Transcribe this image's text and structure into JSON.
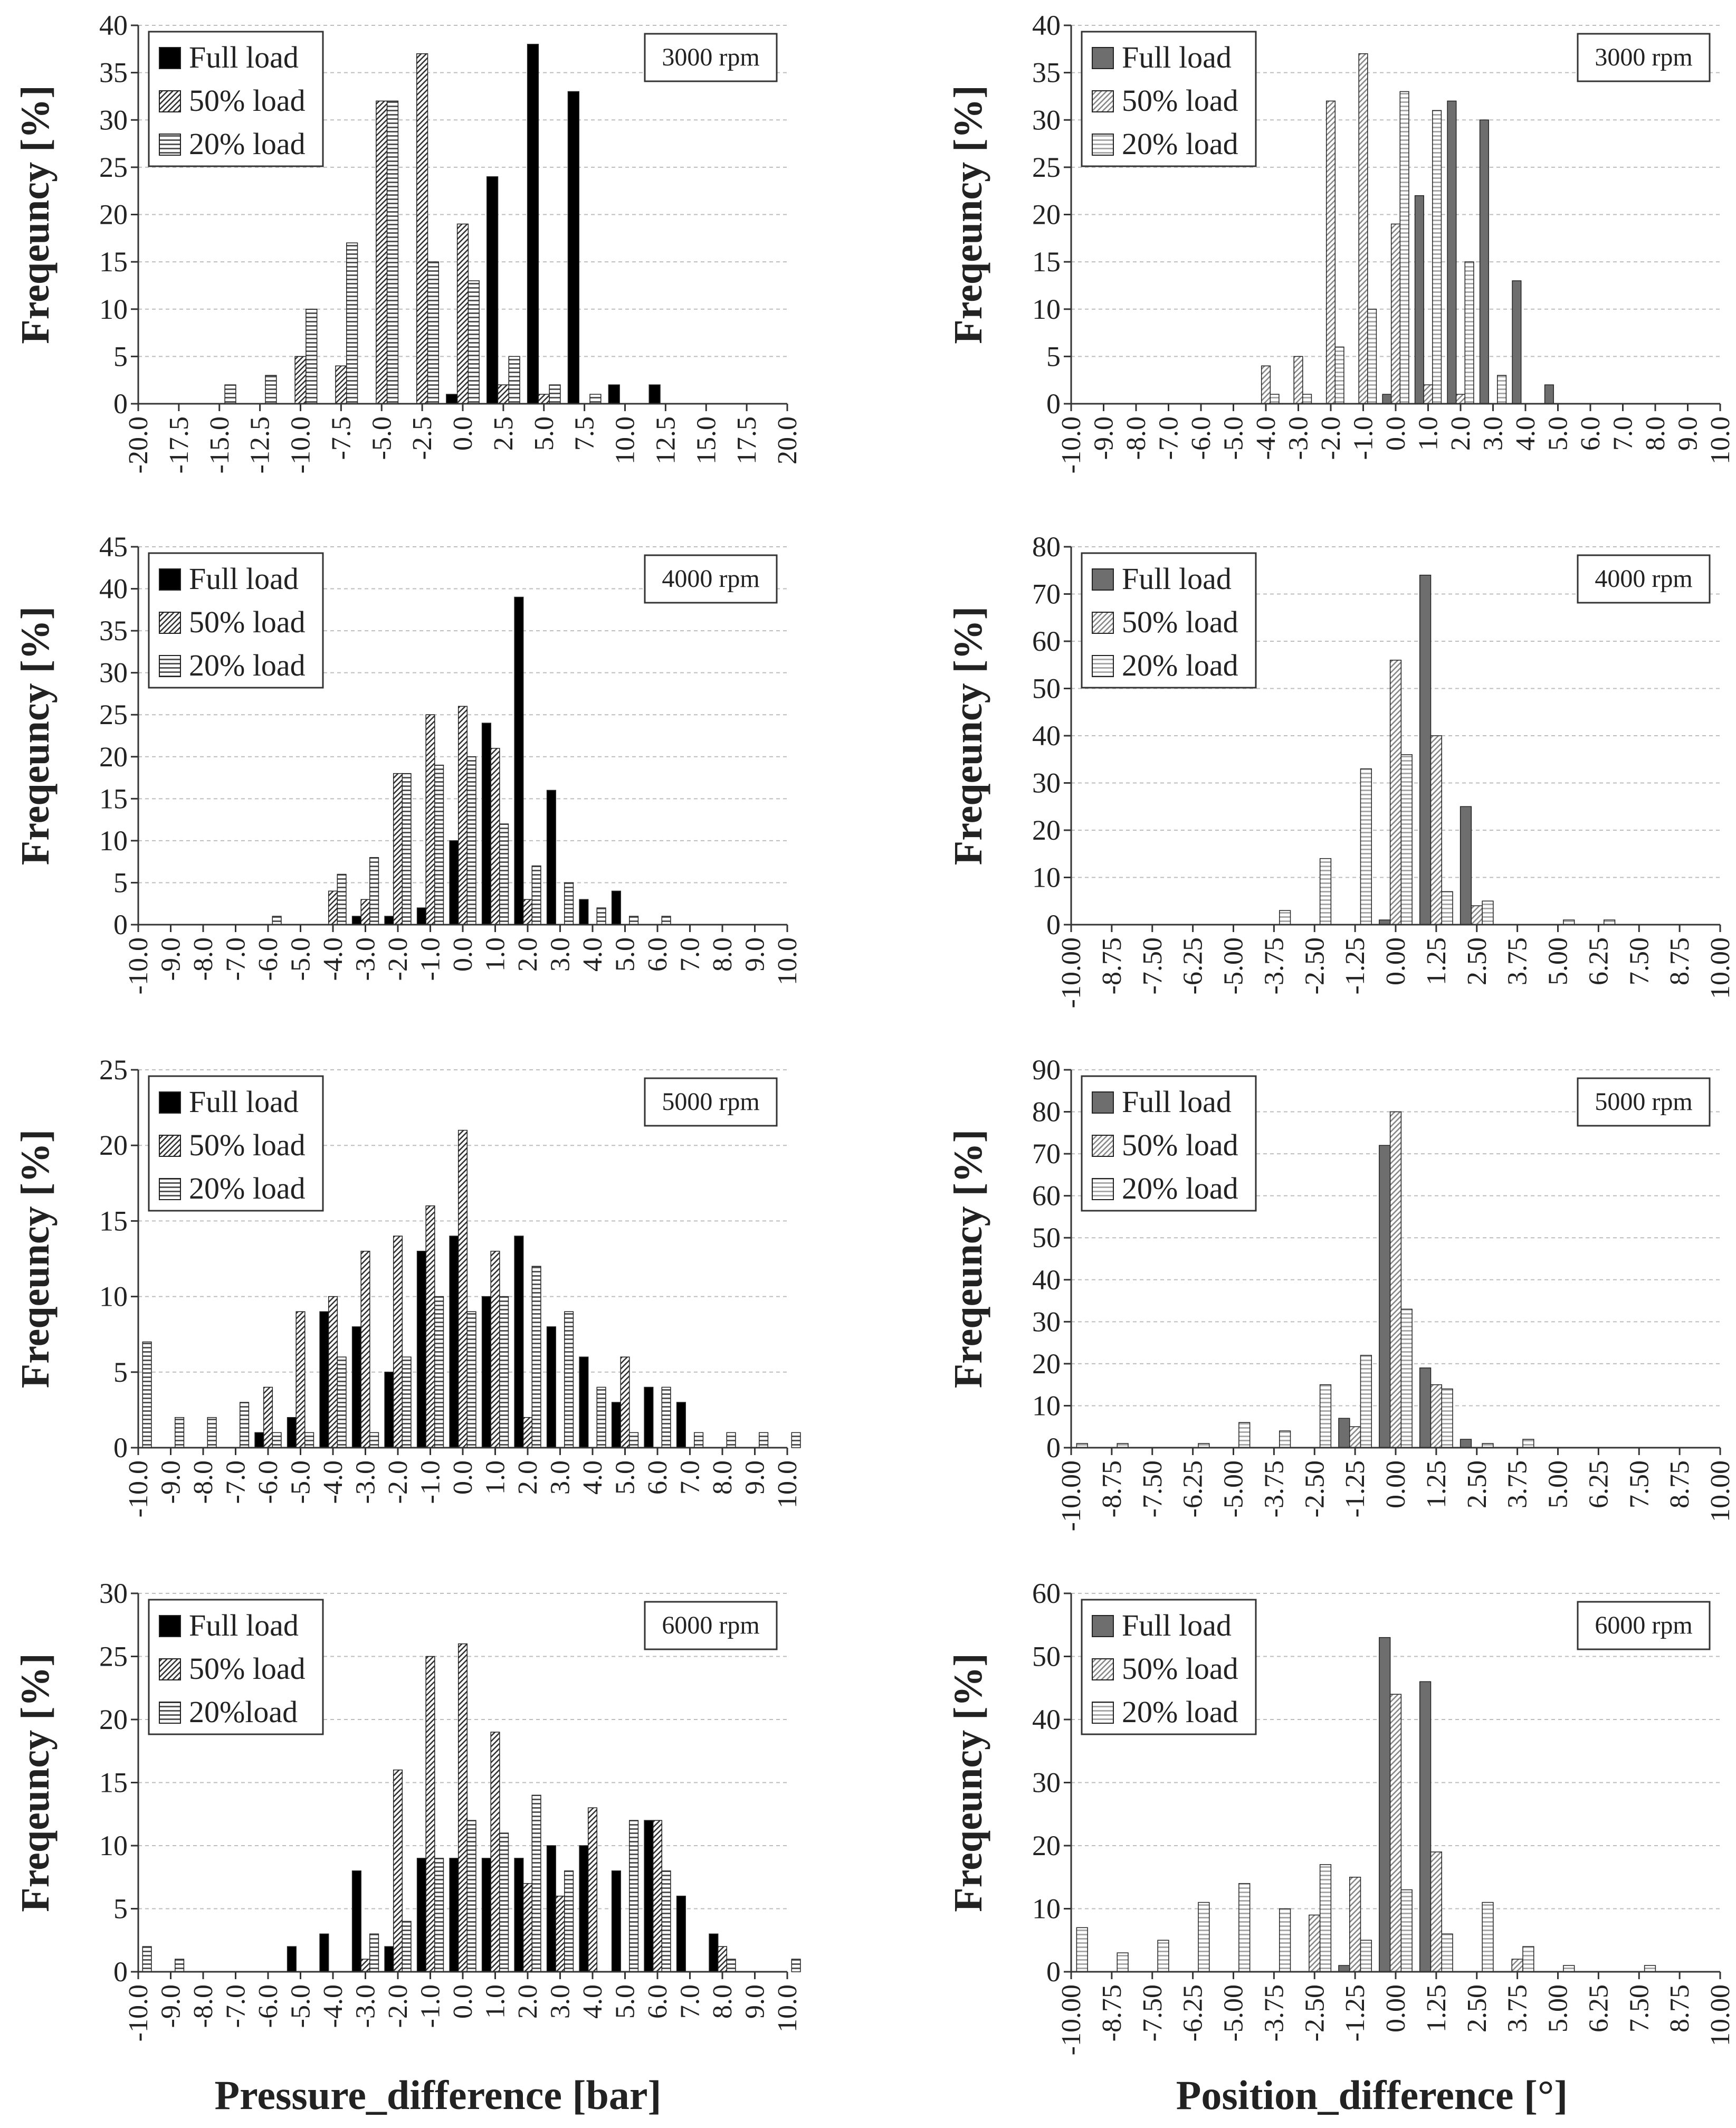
{
  "figure": {
    "left_xlabel": "Pressure_difference [bar]",
    "right_xlabel": "Position_difference [°]",
    "ylabel": "Freqeuncy [%]"
  },
  "colors": {
    "full_left": "#000000",
    "full_right": "#6e6e6e",
    "hatch_dark": "#333333",
    "hatch_light": "#888888",
    "gridline": "#bdbdbd",
    "axis": "#333333"
  },
  "chart_data": [
    {
      "id": "p3000",
      "type": "bar",
      "column": "left",
      "row": 0,
      "speed_label": "3000 rpm",
      "ylabel": "Freqeuncy [%]",
      "ylim": [
        0,
        40
      ],
      "ystep": 5,
      "x_ticks": [
        "-20.0",
        "-17.5",
        "-15.0",
        "-12.5",
        "-10.0",
        "-7.5",
        "-5.0",
        "-2.5",
        "0.0",
        "2.5",
        "5.0",
        "7.5",
        "10.0",
        "12.5",
        "15.0",
        "17.5",
        "20.0"
      ],
      "x": [
        -15.0,
        -12.5,
        -10.0,
        -7.5,
        -5.0,
        -2.5,
        0.0,
        2.5,
        5.0,
        7.5,
        10.0,
        12.5
      ],
      "legend": "top-left",
      "grid": true,
      "series": [
        {
          "name": "Full load",
          "style": "solid",
          "values": [
            0,
            0,
            0,
            0,
            0,
            0,
            1,
            24,
            38,
            33,
            2,
            2
          ]
        },
        {
          "name": "50% load",
          "style": "diag",
          "values": [
            0,
            0,
            5,
            4,
            32,
            37,
            19,
            2,
            1,
            0,
            0,
            0
          ]
        },
        {
          "name": "20% load",
          "style": "horiz",
          "values": [
            2,
            3,
            10,
            17,
            32,
            15,
            13,
            5,
            2,
            1,
            0,
            0
          ]
        }
      ]
    },
    {
      "id": "a3000",
      "type": "bar",
      "column": "right",
      "row": 0,
      "speed_label": "3000 rpm",
      "ylabel": "Freqeuncy [%]",
      "ylim": [
        0,
        40
      ],
      "ystep": 5,
      "x_ticks": [
        "-10.0",
        "-9.0",
        "-8.0",
        "-7.0",
        "-6.0",
        "-5.0",
        "-4.0",
        "-3.0",
        "-2.0",
        "-1.0",
        "0.0",
        "1.0",
        "2.0",
        "3.0",
        "4.0",
        "5.0",
        "6.0",
        "7.0",
        "8.0",
        "9.0",
        "10.0"
      ],
      "x": [
        -4.0,
        -3.0,
        -2.0,
        -1.0,
        0.0,
        1.0,
        2.0,
        3.0,
        4.0,
        5.0
      ],
      "legend": "top-left",
      "grid": true,
      "series": [
        {
          "name": "Full load",
          "style": "solid",
          "values": [
            0,
            0,
            0,
            0,
            1,
            22,
            32,
            30,
            13,
            2
          ]
        },
        {
          "name": "50% load",
          "style": "diag",
          "values": [
            4,
            5,
            32,
            37,
            19,
            2,
            1,
            0,
            0,
            0
          ]
        },
        {
          "name": "20% load",
          "style": "horiz",
          "values": [
            1,
            1,
            6,
            10,
            33,
            31,
            15,
            3,
            0,
            0
          ]
        }
      ]
    },
    {
      "id": "p4000",
      "type": "bar",
      "column": "left",
      "row": 1,
      "speed_label": "4000 rpm",
      "ylabel": "Freqeuncy [%]",
      "ylim": [
        0,
        45
      ],
      "ystep": 5,
      "x_ticks": [
        "-10.0",
        "-9.0",
        "-8.0",
        "-7.0",
        "-6.0",
        "-5.0",
        "-4.0",
        "-3.0",
        "-2.0",
        "-1.0",
        "0.0",
        "1.0",
        "2.0",
        "3.0",
        "4.0",
        "5.0",
        "6.0",
        "7.0",
        "8.0",
        "9.0",
        "10.0"
      ],
      "x": [
        -6.0,
        -4.0,
        -3.0,
        -2.0,
        -1.0,
        0.0,
        1.0,
        2.0,
        3.0,
        4.0,
        5.0,
        6.0
      ],
      "legend": "top-left",
      "grid": true,
      "series": [
        {
          "name": "Full load",
          "style": "solid",
          "values": [
            0,
            0,
            1,
            1,
            2,
            10,
            24,
            39,
            16,
            3,
            4,
            0
          ]
        },
        {
          "name": "50% load",
          "style": "diag",
          "values": [
            0,
            4,
            3,
            18,
            25,
            26,
            21,
            3,
            0,
            0,
            0,
            0
          ]
        },
        {
          "name": "20% load",
          "style": "horiz",
          "values": [
            1,
            6,
            8,
            18,
            19,
            20,
            12,
            7,
            5,
            2,
            1,
            1
          ]
        }
      ]
    },
    {
      "id": "a4000",
      "type": "bar",
      "column": "right",
      "row": 1,
      "speed_label": "4000 rpm",
      "ylabel": "Freqeuncy [%]",
      "ylim": [
        0,
        80
      ],
      "ystep": 10,
      "x_ticks": [
        "-10.00",
        "-8.75",
        "-7.50",
        "-6.25",
        "-5.00",
        "-3.75",
        "-2.50",
        "-1.25",
        "0.00",
        "1.25",
        "2.50",
        "3.75",
        "5.00",
        "6.25",
        "7.50",
        "8.75",
        "10.00"
      ],
      "x": [
        -3.75,
        -2.5,
        -1.25,
        0.0,
        1.25,
        2.5,
        5.0,
        6.25
      ],
      "legend": "top-left",
      "grid": true,
      "series": [
        {
          "name": "Full load",
          "style": "solid",
          "values": [
            0,
            0,
            0,
            1,
            74,
            25,
            0,
            0
          ]
        },
        {
          "name": "50% load",
          "style": "diag",
          "values": [
            0,
            0,
            0,
            56,
            40,
            4,
            0,
            0
          ]
        },
        {
          "name": "20% load",
          "style": "horiz",
          "values": [
            3,
            14,
            33,
            36,
            7,
            5,
            1,
            1
          ]
        }
      ]
    },
    {
      "id": "p5000",
      "type": "bar",
      "column": "left",
      "row": 2,
      "speed_label": "5000 rpm",
      "ylabel": "Freqeuncy [%]",
      "ylim": [
        0,
        25
      ],
      "ystep": 5,
      "x_ticks": [
        "-10.0",
        "-9.0",
        "-8.0",
        "-7.0",
        "-6.0",
        "-5.0",
        "-4.0",
        "-3.0",
        "-2.0",
        "-1.0",
        "0.0",
        "1.0",
        "2.0",
        "3.0",
        "4.0",
        "5.0",
        "6.0",
        "7.0",
        "8.0",
        "9.0",
        "10.0"
      ],
      "x": [
        -10.0,
        -9.0,
        -8.0,
        -7.0,
        -6.0,
        -5.0,
        -4.0,
        -3.0,
        -2.0,
        -1.0,
        0.0,
        1.0,
        2.0,
        3.0,
        4.0,
        5.0,
        6.0,
        7.0,
        8.0,
        9.0,
        10.0
      ],
      "legend": "top-left",
      "grid": true,
      "series": [
        {
          "name": "Full load",
          "style": "solid",
          "values": [
            0,
            0,
            0,
            0,
            1,
            2,
            9,
            8,
            5,
            13,
            14,
            10,
            14,
            8,
            6,
            3,
            4,
            3,
            0,
            0,
            0
          ]
        },
        {
          "name": "50% load",
          "style": "diag",
          "values": [
            0,
            0,
            0,
            0,
            4,
            9,
            10,
            13,
            14,
            16,
            21,
            13,
            2,
            0,
            0,
            6,
            0,
            0,
            0,
            0,
            0
          ]
        },
        {
          "name": "20% load",
          "style": "horiz",
          "values": [
            7,
            2,
            2,
            3,
            1,
            1,
            6,
            1,
            6,
            10,
            9,
            10,
            12,
            9,
            4,
            1,
            4,
            1,
            1,
            1,
            1
          ]
        }
      ]
    },
    {
      "id": "a5000",
      "type": "bar",
      "column": "right",
      "row": 2,
      "speed_label": "5000 rpm",
      "ylabel": "Freqeuncy [%]",
      "ylim": [
        0,
        90
      ],
      "ystep": 10,
      "x_ticks": [
        "-10.00",
        "-8.75",
        "-7.50",
        "-6.25",
        "-5.00",
        "-3.75",
        "-2.50",
        "-1.25",
        "0.00",
        "1.25",
        "2.50",
        "3.75",
        "5.00",
        "6.25",
        "7.50",
        "8.75",
        "10.00"
      ],
      "x": [
        -10.0,
        -8.75,
        -6.25,
        -5.0,
        -3.75,
        -2.5,
        -1.25,
        0.0,
        1.25,
        2.5,
        3.75
      ],
      "legend": "top-left",
      "grid": true,
      "series": [
        {
          "name": "Full load",
          "style": "solid",
          "values": [
            0,
            0,
            0,
            0,
            0,
            0,
            7,
            72,
            19,
            2,
            0
          ]
        },
        {
          "name": "50% load",
          "style": "diag",
          "values": [
            0,
            0,
            0,
            0,
            0,
            0,
            5,
            80,
            15,
            0,
            0
          ]
        },
        {
          "name": "20% load",
          "style": "horiz",
          "values": [
            1,
            1,
            1,
            6,
            4,
            15,
            22,
            33,
            14,
            1,
            2
          ]
        }
      ]
    },
    {
      "id": "p6000",
      "type": "bar",
      "column": "left",
      "row": 3,
      "speed_label": "6000 rpm",
      "ylabel": "Freqeuncy [%]",
      "ylim": [
        0,
        30
      ],
      "ystep": 5,
      "x_ticks": [
        "-10.0",
        "-9.0",
        "-8.0",
        "-7.0",
        "-6.0",
        "-5.0",
        "-4.0",
        "-3.0",
        "-2.0",
        "-1.0",
        "0.0",
        "1.0",
        "2.0",
        "3.0",
        "4.0",
        "5.0",
        "6.0",
        "7.0",
        "8.0",
        "9.0",
        "10.0"
      ],
      "x": [
        -10.0,
        -9.0,
        -8.0,
        -7.0,
        -6.0,
        -5.0,
        -4.0,
        -3.0,
        -2.0,
        -1.0,
        0.0,
        1.0,
        2.0,
        3.0,
        4.0,
        5.0,
        6.0,
        7.0,
        8.0,
        9.0,
        10.0
      ],
      "legend": "top-left",
      "grid": true,
      "series": [
        {
          "name": "Full load",
          "style": "solid",
          "values": [
            0,
            0,
            0,
            0,
            0,
            2,
            3,
            8,
            2,
            9,
            9,
            9,
            9,
            10,
            10,
            8,
            12,
            6,
            3,
            0,
            0
          ]
        },
        {
          "name": "50% load",
          "style": "diag",
          "values": [
            0,
            0,
            0,
            0,
            0,
            0,
            0,
            1,
            16,
            25,
            26,
            19,
            7,
            6,
            13,
            0,
            12,
            0,
            2,
            0,
            0
          ]
        },
        {
          "name": "20%load",
          "style": "horiz",
          "values": [
            2,
            1,
            0,
            0,
            0,
            0,
            0,
            3,
            4,
            9,
            12,
            11,
            14,
            8,
            0,
            12,
            8,
            0,
            1,
            0,
            1
          ]
        }
      ]
    },
    {
      "id": "a6000",
      "type": "bar",
      "column": "right",
      "row": 3,
      "speed_label": "6000 rpm",
      "ylabel": "Freqeuncy [%]",
      "ylim": [
        0,
        60
      ],
      "ystep": 10,
      "x_ticks": [
        "-10.00",
        "-8.75",
        "-7.50",
        "-6.25",
        "-5.00",
        "-3.75",
        "-2.50",
        "-1.25",
        "0.00",
        "1.25",
        "2.50",
        "3.75",
        "5.00",
        "6.25",
        "7.50",
        "8.75",
        "10.00"
      ],
      "x": [
        -10.0,
        -8.75,
        -7.5,
        -6.25,
        -5.0,
        -3.75,
        -2.5,
        -1.25,
        0.0,
        1.25,
        2.5,
        3.75,
        5.0,
        7.5
      ],
      "legend": "top-left",
      "grid": true,
      "series": [
        {
          "name": "Full load",
          "style": "solid",
          "values": [
            0,
            0,
            0,
            0,
            0,
            0,
            0,
            1,
            53,
            46,
            0,
            0,
            0,
            0
          ]
        },
        {
          "name": "50% load",
          "style": "diag",
          "values": [
            0,
            0,
            0,
            0,
            0,
            0,
            9,
            15,
            44,
            19,
            0,
            2,
            0,
            0
          ]
        },
        {
          "name": "20% load",
          "style": "horiz",
          "values": [
            7,
            3,
            5,
            11,
            14,
            10,
            17,
            5,
            13,
            6,
            11,
            4,
            1,
            1
          ]
        }
      ]
    }
  ]
}
